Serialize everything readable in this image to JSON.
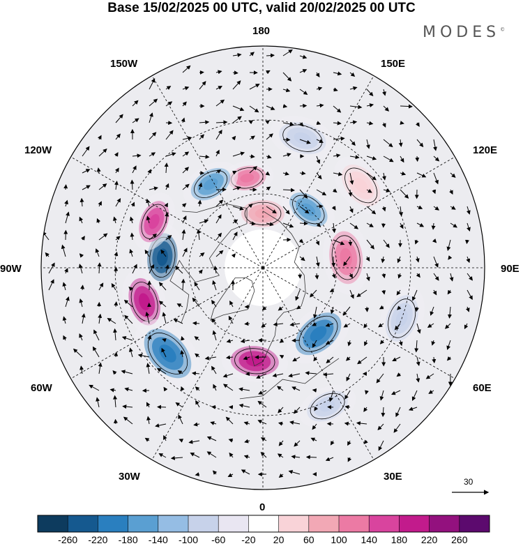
{
  "title": "Base 15/02/2025 00 UTC, valid 20/02/2025 00 UTC",
  "brand": {
    "text": "MODES",
    "mark": "©"
  },
  "longitude_labels": {
    "lon_180": "180",
    "lon_150E": "150E",
    "lon_120E": "120E",
    "lon_90E": "90E",
    "lon_60E": "60E",
    "lon_30E": "30E",
    "lon_0": "0",
    "lon_30W": "30W",
    "lon_60W": "60W",
    "lon_90W": "90W",
    "lon_120W": "120W",
    "lon_150W": "150W"
  },
  "reference_vector": {
    "label": "30"
  },
  "colorbar": {
    "colors": [
      "#0d3b5e",
      "#15598f",
      "#2a7fbf",
      "#5a9fd2",
      "#95bde4",
      "#c7d2ea",
      "#e9e6f2",
      "#ffffff",
      "#f9d3d8",
      "#f2a8b5",
      "#ec7aa4",
      "#d9449e",
      "#c21b8c",
      "#93117e",
      "#5c0a6e"
    ],
    "labels": [
      "-260",
      "-220",
      "-180",
      "-140",
      "-100",
      "-60",
      "-20",
      "20",
      "60",
      "100",
      "140",
      "180",
      "220",
      "260"
    ]
  },
  "anomaly_centers": [
    {
      "lon": -74,
      "lat": 40,
      "color": "#c21b8c",
      "size": 1.0
    },
    {
      "lon": -96,
      "lat": 49,
      "color": "#15598f",
      "size": 1.0
    },
    {
      "lon": -113,
      "lat": 42,
      "color": "#d9449e",
      "size": 0.9
    },
    {
      "lon": -48,
      "lat": 38,
      "color": "#2a7fbf",
      "size": 1.2
    },
    {
      "lon": -5,
      "lat": 52,
      "color": "#c21b8c",
      "size": 1.0
    },
    {
      "lon": 40,
      "lat": 55,
      "color": "#2a7fbf",
      "size": 1.1
    },
    {
      "lon": 97,
      "lat": 56,
      "color": "#ec7aa4",
      "size": 1.1
    },
    {
      "lon": 142,
      "lat": 60,
      "color": "#5a9fd2",
      "size": 0.9
    },
    {
      "lon": -170,
      "lat": 53,
      "color": "#ec7aa4",
      "size": 0.8
    },
    {
      "lon": -148,
      "lat": 50,
      "color": "#5a9fd2",
      "size": 0.9
    },
    {
      "lon": 163,
      "lat": 35,
      "color": "#c7d2ea",
      "size": 1.0
    },
    {
      "lon": 130,
      "lat": 38,
      "color": "#f9d3d8",
      "size": 1.0
    },
    {
      "lon": 180,
      "lat": 68,
      "color": "#f2a8b5",
      "size": 0.9
    },
    {
      "lon": 25,
      "lat": 28,
      "color": "#c7d2ea",
      "size": 0.9
    },
    {
      "lon": 70,
      "lat": 30,
      "color": "#c7d2ea",
      "size": 1.0
    }
  ]
}
